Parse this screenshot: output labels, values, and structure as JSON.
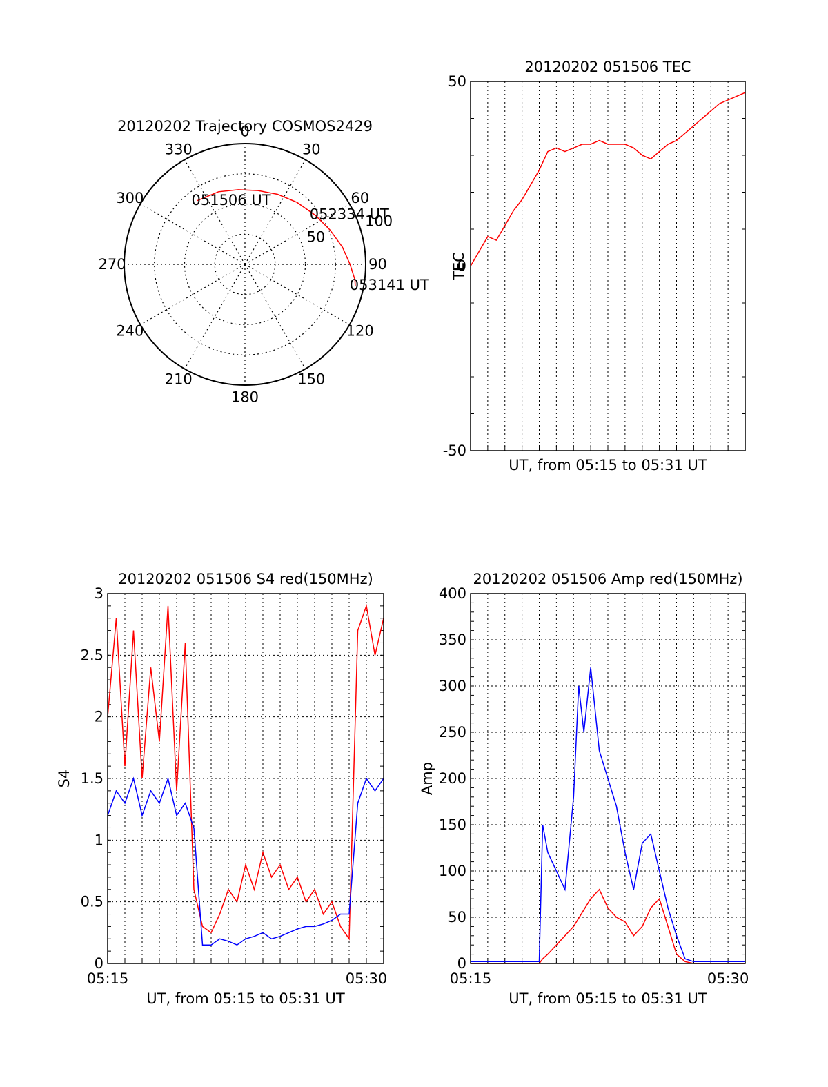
{
  "chart_data": [
    {
      "type": "polar",
      "title": "20120202 Trajectory COSMOS2429",
      "azimuth_labels": [
        "0",
        "30",
        "60",
        "90",
        "120",
        "150",
        "180",
        "210",
        "240",
        "270",
        "300",
        "330"
      ],
      "radial_labels": [
        "50",
        "100"
      ],
      "rlim": [
        0,
        100
      ],
      "grid": true,
      "trajectory": {
        "color": "#ff0000",
        "points": [
          [
            323,
            66
          ],
          [
            340,
            64
          ],
          [
            355,
            62
          ],
          [
            10,
            62
          ],
          [
            25,
            64
          ],
          [
            40,
            67
          ],
          [
            55,
            71
          ],
          [
            68,
            76
          ],
          [
            80,
            82
          ],
          [
            90,
            87
          ],
          [
            98,
            92
          ],
          [
            101,
            93
          ]
        ]
      },
      "annotations": [
        {
          "text": "051506 UT",
          "az": 323,
          "r": 66
        },
        {
          "text": "052334 UT",
          "az": 55,
          "r": 71
        },
        {
          "text": "053141 UT",
          "az": 101,
          "r": 93
        }
      ]
    },
    {
      "type": "line",
      "title": "20120202 051506 TEC",
      "xlabel": "UT, from 05:15 to 05:31 UT",
      "ylabel": "TEC",
      "ylim": [
        -50,
        50
      ],
      "xlim": [
        0,
        16
      ],
      "yticks": [
        "50",
        "0",
        "-50"
      ],
      "grid": true,
      "series": [
        {
          "color": "#ff0000",
          "x": [
            0,
            0.5,
            1,
            1.5,
            2,
            2.5,
            3,
            3.5,
            4,
            4.5,
            5,
            5.5,
            6,
            6.5,
            7,
            7.5,
            8,
            8.5,
            9,
            9.5,
            10,
            10.5,
            11,
            11.5,
            12,
            12.5,
            13,
            13.5,
            14,
            14.5,
            15,
            15.5,
            16
          ],
          "y": [
            0,
            4,
            8,
            7,
            11,
            15,
            18,
            22,
            26,
            31,
            32,
            31,
            32,
            33,
            33,
            34,
            33,
            33,
            33,
            32,
            30,
            29,
            31,
            33,
            34,
            36,
            38,
            40,
            42,
            44,
            45,
            46,
            47
          ]
        }
      ]
    },
    {
      "type": "line",
      "title": "20120202 051506 S4 red(150MHz)",
      "xlabel": "UT, from 05:15 to 05:31 UT",
      "ylabel": "S4",
      "ylim": [
        0,
        3
      ],
      "xlim": [
        0,
        16
      ],
      "yticks": [
        "0",
        "0.5",
        "1",
        "1.5",
        "2",
        "2.5",
        "3"
      ],
      "xticks": [
        {
          "x": 0,
          "label": "05:15"
        },
        {
          "x": 15,
          "label": "05:30"
        }
      ],
      "grid": true,
      "series": [
        {
          "color": "#ff0000",
          "x": [
            0,
            0.5,
            1,
            1.5,
            2,
            2.5,
            3,
            3.5,
            4,
            4.5,
            5,
            5.5,
            6,
            6.5,
            7,
            7.5,
            8,
            8.5,
            9,
            9.5,
            10,
            10.5,
            11,
            11.5,
            12,
            12.5,
            13,
            13.5,
            14,
            14.5,
            15,
            15.5,
            16
          ],
          "y": [
            2.0,
            2.8,
            1.6,
            2.7,
            1.5,
            2.4,
            1.8,
            2.9,
            1.4,
            2.6,
            0.6,
            0.3,
            0.25,
            0.4,
            0.6,
            0.5,
            0.8,
            0.6,
            0.9,
            0.7,
            0.8,
            0.6,
            0.7,
            0.5,
            0.6,
            0.4,
            0.5,
            0.3,
            0.2,
            2.7,
            2.9,
            2.5,
            2.8
          ]
        },
        {
          "color": "#0000ff",
          "x": [
            0,
            0.5,
            1,
            1.5,
            2,
            2.5,
            3,
            3.5,
            4,
            4.5,
            5,
            5.5,
            6,
            6.5,
            7,
            7.5,
            8,
            8.5,
            9,
            9.5,
            10,
            10.5,
            11,
            11.5,
            12,
            12.5,
            13,
            13.5,
            14,
            14.5,
            15,
            15.5,
            16
          ],
          "y": [
            1.2,
            1.4,
            1.3,
            1.5,
            1.2,
            1.4,
            1.3,
            1.5,
            1.2,
            1.3,
            1.1,
            0.15,
            0.15,
            0.2,
            0.18,
            0.15,
            0.2,
            0.22,
            0.25,
            0.2,
            0.22,
            0.25,
            0.28,
            0.3,
            0.3,
            0.32,
            0.35,
            0.4,
            0.4,
            1.3,
            1.5,
            1.4,
            1.5
          ]
        }
      ]
    },
    {
      "type": "line",
      "title": "20120202 051506 Amp red(150MHz)",
      "xlabel": "UT, from 05:15 to 05:31 UT",
      "ylabel": "Amp",
      "ylim": [
        0,
        400
      ],
      "xlim": [
        0,
        16
      ],
      "yticks": [
        "0",
        "50",
        "100",
        "150",
        "200",
        "250",
        "300",
        "350",
        "400"
      ],
      "xticks": [
        {
          "x": 0,
          "label": "05:15"
        },
        {
          "x": 15,
          "label": "05:30"
        }
      ],
      "grid": true,
      "series": [
        {
          "color": "#0000ff",
          "x": [
            0,
            0.5,
            1,
            1.5,
            2,
            2.5,
            3,
            3.5,
            4,
            4.2,
            4.5,
            5,
            5.5,
            6,
            6.3,
            6.6,
            7,
            7.5,
            8,
            8.5,
            9,
            9.5,
            10,
            10.5,
            11,
            11.5,
            12,
            12.5,
            13,
            13.5,
            14,
            14.5,
            15,
            15.5,
            16
          ],
          "y": [
            2,
            2,
            2,
            2,
            2,
            2,
            2,
            2,
            2,
            150,
            120,
            100,
            80,
            180,
            300,
            250,
            320,
            230,
            200,
            170,
            120,
            80,
            130,
            140,
            100,
            60,
            30,
            5,
            2,
            2,
            2,
            2,
            2,
            2,
            2
          ]
        },
        {
          "color": "#ff0000",
          "x": [
            0,
            0.5,
            1,
            1.5,
            2,
            2.5,
            3,
            3.5,
            4,
            4.2,
            4.5,
            5,
            5.5,
            6,
            6.5,
            7,
            7.5,
            8,
            8.5,
            9,
            9.5,
            10,
            10.5,
            11,
            11.5,
            12,
            12.5,
            13,
            13.5,
            14,
            14.5,
            15,
            15.5,
            16
          ],
          "y": [
            0,
            0,
            0,
            0,
            0,
            0,
            0,
            0,
            0,
            5,
            10,
            20,
            30,
            40,
            55,
            70,
            80,
            60,
            50,
            45,
            30,
            40,
            60,
            70,
            40,
            10,
            2,
            0,
            0,
            0,
            0,
            0,
            0,
            0
          ]
        }
      ]
    }
  ]
}
